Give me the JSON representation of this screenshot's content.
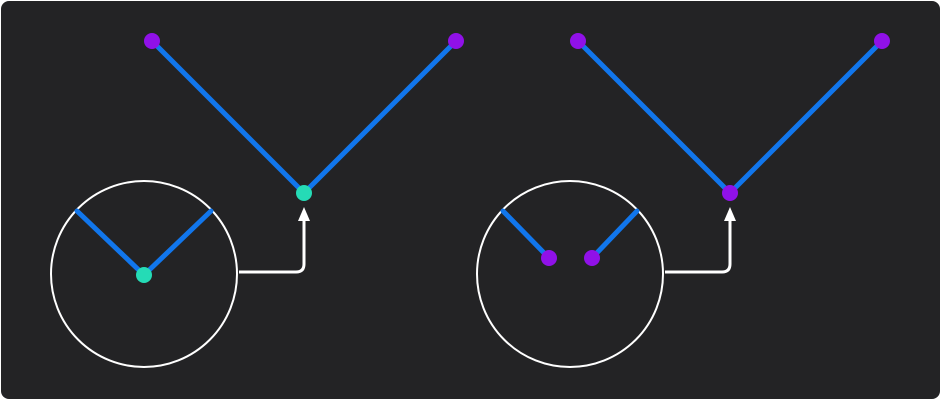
{
  "colors": {
    "background": "#232325",
    "segment": "#1176ec",
    "joined_point": "#25dbb6",
    "endpoint": "#9011e8",
    "callout": "#ffffff"
  },
  "diagrams": [
    {
      "id": "left",
      "vertex_state": "joined",
      "icons": [
        "polyline-icon",
        "zoom-lens-icon",
        "arrow-up-icon"
      ]
    },
    {
      "id": "right",
      "vertex_state": "split",
      "icons": [
        "polyline-icon",
        "zoom-lens-icon",
        "arrow-up-icon"
      ]
    }
  ]
}
